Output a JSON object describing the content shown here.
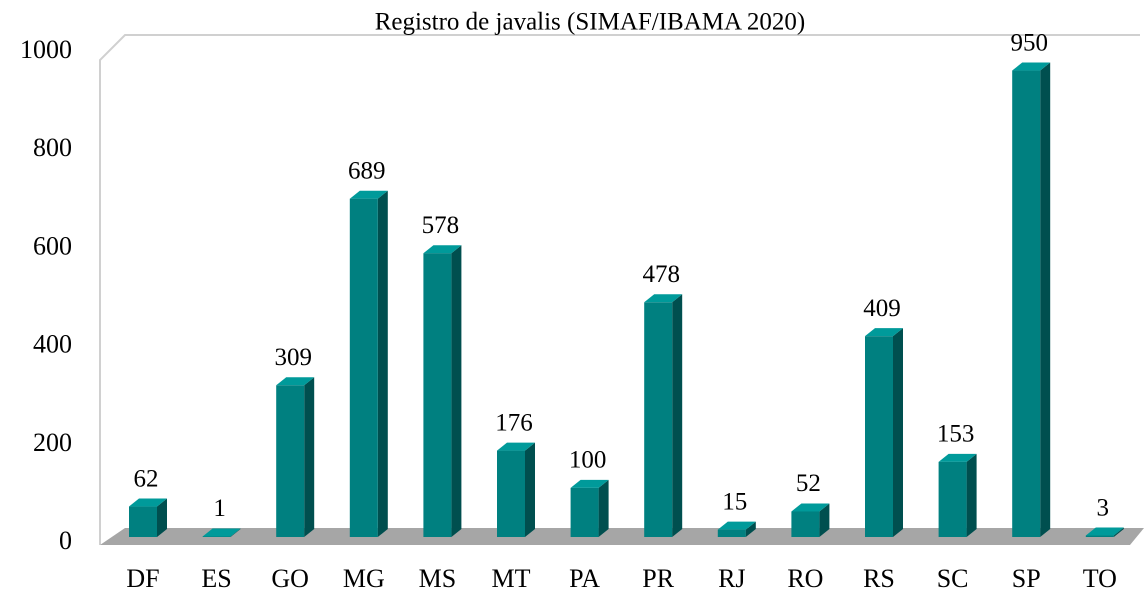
{
  "chart_data": {
    "type": "bar",
    "title": "Registro de javalis (SIMAF/IBAMA 2020)",
    "categories": [
      "DF",
      "ES",
      "GO",
      "MG",
      "MS",
      "MT",
      "PA",
      "PR",
      "RJ",
      "RO",
      "RS",
      "SC",
      "SP",
      "TO"
    ],
    "values": [
      62,
      1,
      309,
      689,
      578,
      176,
      100,
      478,
      15,
      52,
      409,
      153,
      950,
      3
    ],
    "color": "#008080",
    "ylim": [
      0,
      1000
    ],
    "yticks": [
      0,
      200,
      400,
      600,
      800,
      1000
    ],
    "grid": false
  }
}
